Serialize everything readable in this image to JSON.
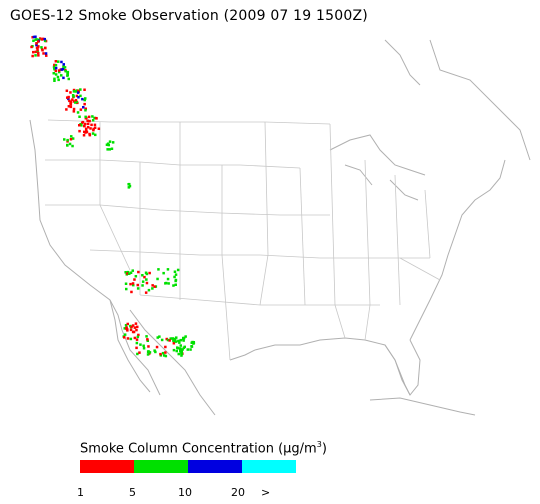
{
  "title": "GOES-12 Smoke Observation (2009 07 19  1500Z)",
  "legend": {
    "title_prefix": "Smoke Column Concentration (",
    "unit_mu": "µg/m",
    "unit_sup": "3",
    "title_suffix": ")",
    "colors": [
      "#ff0000",
      "#00e000",
      "#0000e0",
      "#00ffff"
    ],
    "ticks": [
      "1",
      "5",
      "10",
      "20",
      ">"
    ]
  },
  "map": {
    "land_color": "#ffffff",
    "border_color": "#c8c8c8",
    "coast_color": "#b0b0b0"
  }
}
